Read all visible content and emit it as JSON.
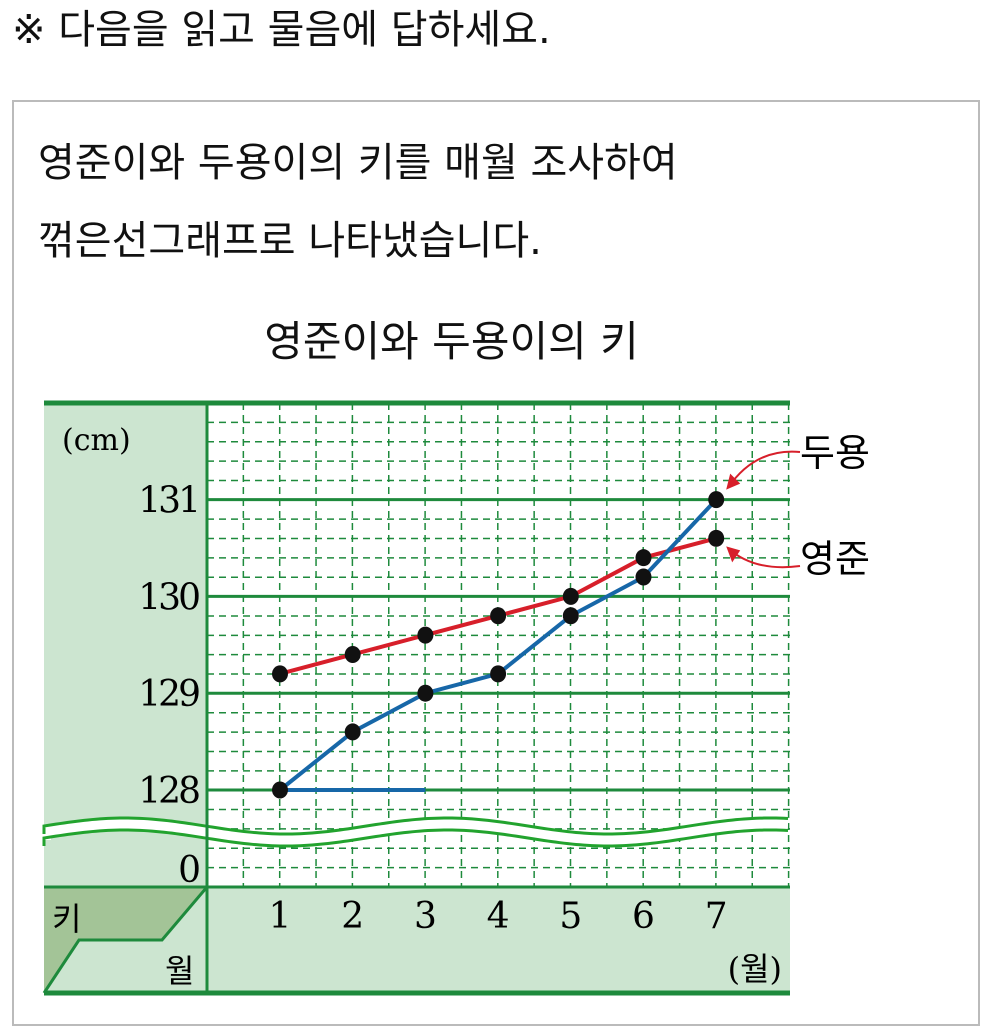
{
  "instruction": "※ 다음을 읽고 물음에 답하세요.",
  "paragraph": [
    "영준이와 두용이의 키를 매월 조사하여",
    "꺾은선그래프로 나타냈습니다."
  ],
  "colors": {
    "grid": "#1e8a3c",
    "background": "#cce5d0",
    "corner": "#a3c497",
    "yeongjun": "#d71f2a",
    "duyong": "#1767a8",
    "point": "#111111"
  },
  "chart_data": {
    "type": "line",
    "title": "영준이와 두용이의 키",
    "ylabel": "(cm)",
    "xlabel": "(월)",
    "corner_labels": {
      "row": "키",
      "col": "월"
    },
    "x": [
      1,
      2,
      3,
      4,
      5,
      6,
      7
    ],
    "x_tick_labels": [
      "1",
      "2",
      "3",
      "4",
      "5",
      "6",
      "7"
    ],
    "y_tick_labels": [
      "131",
      "130",
      "129",
      "128",
      "0"
    ],
    "ylim": [
      128,
      132
    ],
    "y_minor_step": 0.2,
    "axis_break": true,
    "grid": true,
    "series": [
      {
        "name": "영준",
        "color": "#d71f2a",
        "values": [
          129.2,
          129.4,
          129.6,
          129.8,
          130.0,
          130.4,
          130.6
        ]
      },
      {
        "name": "두용",
        "color": "#1767a8",
        "values": [
          128.0,
          128.6,
          129.0,
          129.2,
          129.8,
          130.2,
          131.0
        ]
      }
    ]
  }
}
